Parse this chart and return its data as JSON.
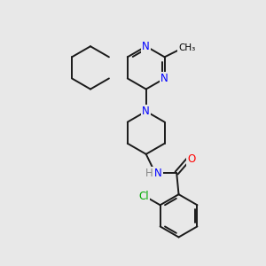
{
  "background_color": "#e8e8e8",
  "atom_colors": {
    "N": "#0000ff",
    "O": "#ff0000",
    "Cl": "#00aa00",
    "C": "#000000",
    "H": "#888888"
  },
  "bond_color": "#1a1a1a",
  "bond_width": 1.4
}
